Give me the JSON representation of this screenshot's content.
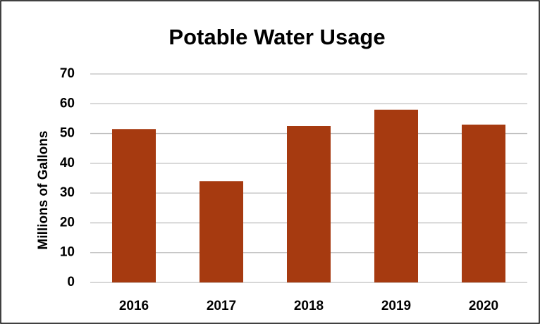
{
  "chart_data": {
    "type": "bar",
    "title": "Potable Water Usage",
    "y_label": "Millions of Gallons",
    "categories": [
      "2016",
      "2017",
      "2018",
      "2019",
      "2020"
    ],
    "values": [
      51.5,
      34,
      52.5,
      58,
      53
    ],
    "color": "#a63a10",
    "ylim": [
      0,
      70
    ],
    "yticks": [
      0,
      10,
      20,
      30,
      40,
      50,
      60,
      70
    ],
    "grid": true
  }
}
